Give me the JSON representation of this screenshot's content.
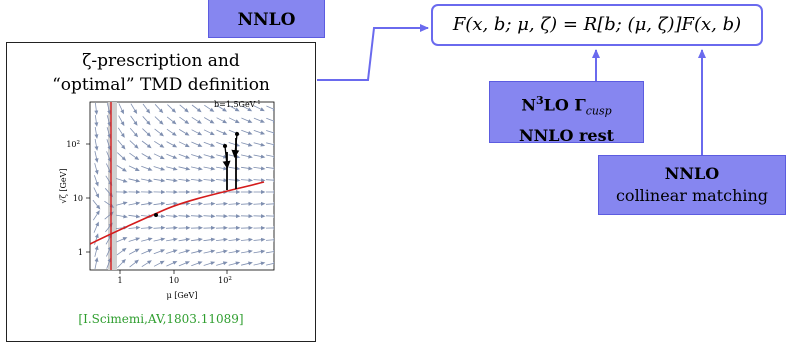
{
  "top_box": {
    "label": "NNLO"
  },
  "formula": {
    "text": "F(x, b; μ, ζ) = R[b; (μ, ζ)]F(x, b)"
  },
  "n3lo_box": {
    "line1_main": "N",
    "line1_sup": "3",
    "line1_rest": "LO Γ",
    "line1_sub": "cusp",
    "line2": "NNLO rest"
  },
  "nnlo_box": {
    "line1": "NNLO",
    "line2": "collinear matching"
  },
  "panel": {
    "title_line1": "ζ-prescription and",
    "title_line2": "“optimal” TMD definition",
    "citation": "[I.Scimemi,AV,1803.11089]"
  },
  "plot": {
    "annotation": "b=1.5GeV",
    "annotation_sup": "-1",
    "xlabel": "μ [GeV]",
    "ylabel": "√ζ [GeV]",
    "xticks": [
      "1",
      "10",
      "10"
    ],
    "xtick_sup": "2",
    "yticks": [
      "1",
      "10",
      "10"
    ],
    "ytick_sup": "2"
  },
  "colors": {
    "accent_fill": "#8686f0",
    "accent_line": "#6a6aee",
    "curve": "#d41b1b",
    "field": "#7f8fb0",
    "citation": "#2f9e2f"
  }
}
